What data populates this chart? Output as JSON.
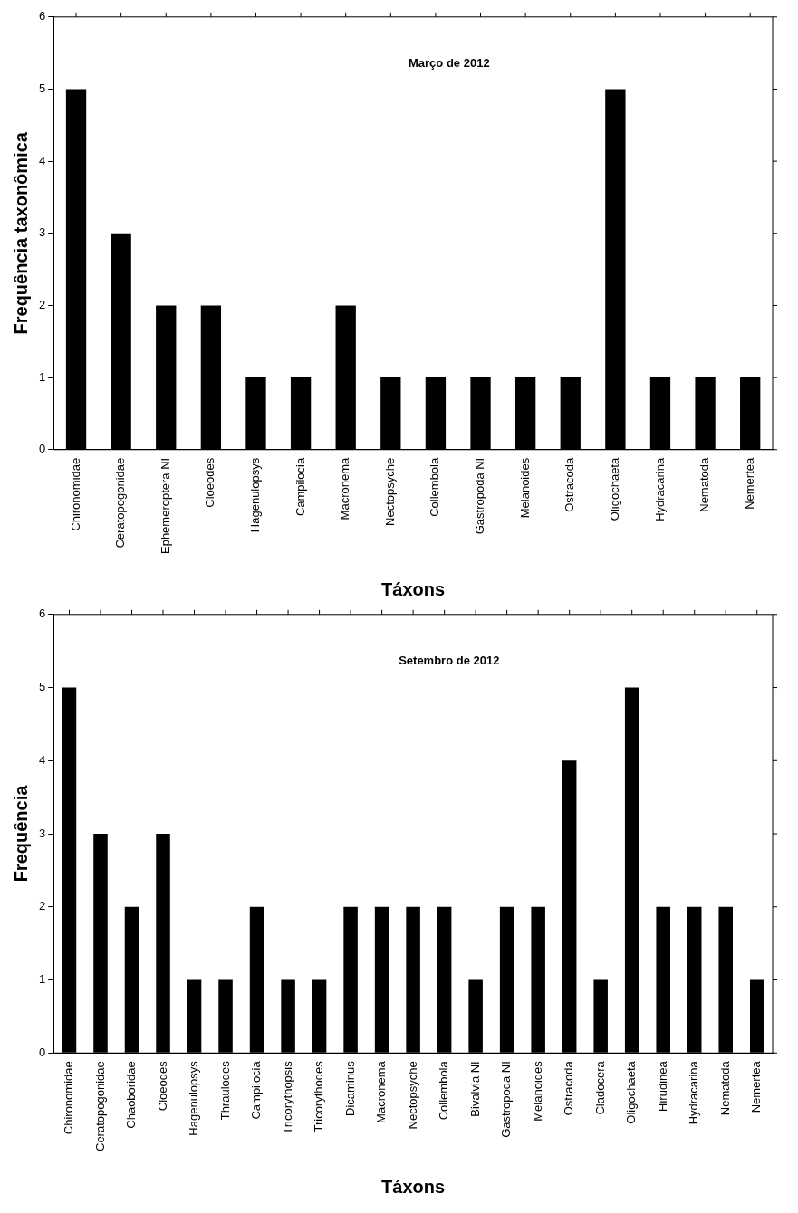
{
  "chart_data": [
    {
      "type": "bar",
      "annotations": [
        "Março de 2012"
      ],
      "xlabel": "Táxons",
      "ylabel": "Frequência taxonômica",
      "categories": [
        "Chironomidae",
        "Ceratopogonidae",
        "Ephemeroptera NI",
        "Cloeodes",
        "Hagenulopsys",
        "Campilocia",
        "Macronema",
        "Nectopsyche",
        "Collembola",
        "Gastropoda NI",
        "Melanoides",
        "Ostracoda",
        "Oligochaeta",
        "Hydracarina",
        "Nematoda",
        "Nemertea"
      ],
      "values": [
        5,
        3,
        2,
        2,
        1,
        1,
        2,
        1,
        1,
        1,
        1,
        1,
        5,
        1,
        1,
        1
      ],
      "color": "#000000",
      "ylim": [
        0,
        6
      ],
      "yticks": [
        0,
        1,
        2,
        3,
        4,
        5,
        6
      ],
      "grid": false
    },
    {
      "type": "bar",
      "annotations": [
        "Setembro de 2012"
      ],
      "xlabel": "Táxons",
      "ylabel": "Frequência",
      "categories": [
        "Chironomidae",
        "Ceratopogonidae",
        "Chaoboridae",
        "Cloeodes",
        "Hagenulopsys",
        "Thraulodes",
        "Campilocia",
        "Tricorythopsis",
        "Tricorythodes",
        "Dicaminus",
        "Macronema",
        "Nectopsyche",
        "Collembola",
        "Bivalvia NI",
        "Gastropoda NI",
        "Melanoides",
        "Ostracoda",
        "Cladocera",
        "Oligochaeta",
        "Hirudinea",
        "Hydracarina",
        "Nematoda",
        "Nemertea"
      ],
      "values": [
        5,
        3,
        2,
        3,
        1,
        1,
        2,
        1,
        1,
        2,
        2,
        2,
        2,
        1,
        2,
        2,
        4,
        1,
        5,
        2,
        2,
        2,
        1
      ],
      "color": "#000000",
      "ylim": [
        0,
        6
      ],
      "yticks": [
        0,
        1,
        2,
        3,
        4,
        5,
        6
      ],
      "grid": false
    }
  ]
}
